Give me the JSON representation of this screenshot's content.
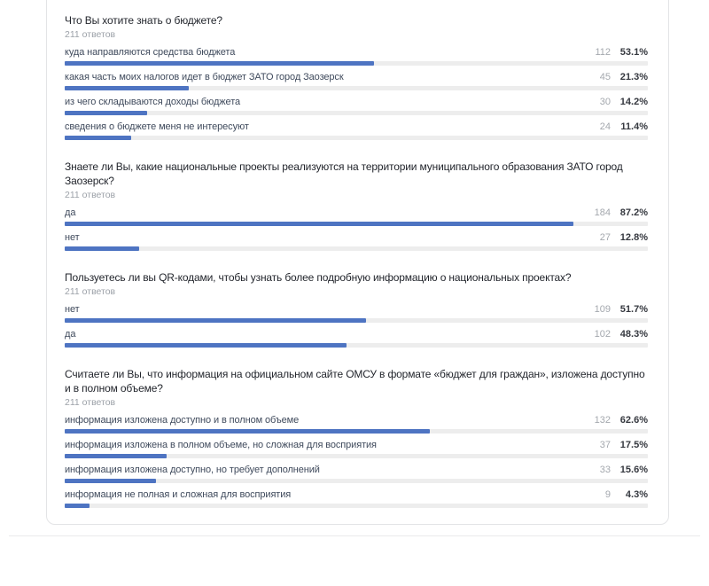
{
  "page": {
    "kind": "survey-results",
    "language": "ru"
  },
  "colors": {
    "bar_fill": "#4e74c2",
    "bar_track": "#ededed",
    "title_text": "#23262d",
    "muted_text": "#9ca1a8",
    "label_text": "#3f4a5c",
    "count_text": "#a4a8ae",
    "percent_text": "#35383f",
    "card_border": "#e3e4e6",
    "divider": "#e9eaeb"
  },
  "chart_data": [
    {
      "type": "bar",
      "orientation": "horizontal",
      "title": "Что Вы хотите знать о бюджете?",
      "responses_label": "211 ответов",
      "categories": [
        "куда направляются средства бюджета",
        "какая часть моих налогов идет в бюджет ЗАТО город Заозерск",
        "из чего складываются доходы бюджета",
        "сведения о бюджете меня не интересуют"
      ],
      "values": [
        112,
        45,
        30,
        24
      ],
      "percents": [
        53.1,
        21.3,
        14.2,
        11.4
      ],
      "percent_labels": [
        "53.1%",
        "21.3%",
        "14.2%",
        "11.4%"
      ],
      "xlim": [
        0,
        100
      ],
      "legend": "none",
      "grid": "off"
    },
    {
      "type": "bar",
      "orientation": "horizontal",
      "title": "Знаете ли Вы, какие национальные проекты реализуются на территории муниципального образования ЗАТО город Заозерск?",
      "responses_label": "211 ответов",
      "categories": [
        "да",
        "нет"
      ],
      "values": [
        184,
        27
      ],
      "percents": [
        87.2,
        12.8
      ],
      "percent_labels": [
        "87.2%",
        "12.8%"
      ],
      "xlim": [
        0,
        100
      ],
      "legend": "none",
      "grid": "off"
    },
    {
      "type": "bar",
      "orientation": "horizontal",
      "title": "Пользуетесь ли вы QR-кодами, чтобы узнать более подробную информацию о национальных проектах?",
      "responses_label": "211 ответов",
      "categories": [
        "нет",
        "да"
      ],
      "values": [
        109,
        102
      ],
      "percents": [
        51.7,
        48.3
      ],
      "percent_labels": [
        "51.7%",
        "48.3%"
      ],
      "xlim": [
        0,
        100
      ],
      "legend": "none",
      "grid": "off"
    },
    {
      "type": "bar",
      "orientation": "horizontal",
      "title": "Считаете ли Вы, что информация на официальном сайте ОМСУ в формате «бюджет для граждан», изложена доступно и в полном объеме?",
      "responses_label": "211 ответов",
      "categories": [
        "информация изложена доступно и в полном объеме",
        "информация изложена в полном объеме, но сложная для восприятия",
        "информация изложена доступно, но требует дополнений",
        "информация не полная и сложная для восприятия"
      ],
      "values": [
        132,
        37,
        33,
        9
      ],
      "percents": [
        62.6,
        17.5,
        15.6,
        4.3
      ],
      "percent_labels": [
        "62.6%",
        "17.5%",
        "15.6%",
        "4.3%"
      ],
      "xlim": [
        0,
        100
      ],
      "legend": "none",
      "grid": "off"
    }
  ]
}
